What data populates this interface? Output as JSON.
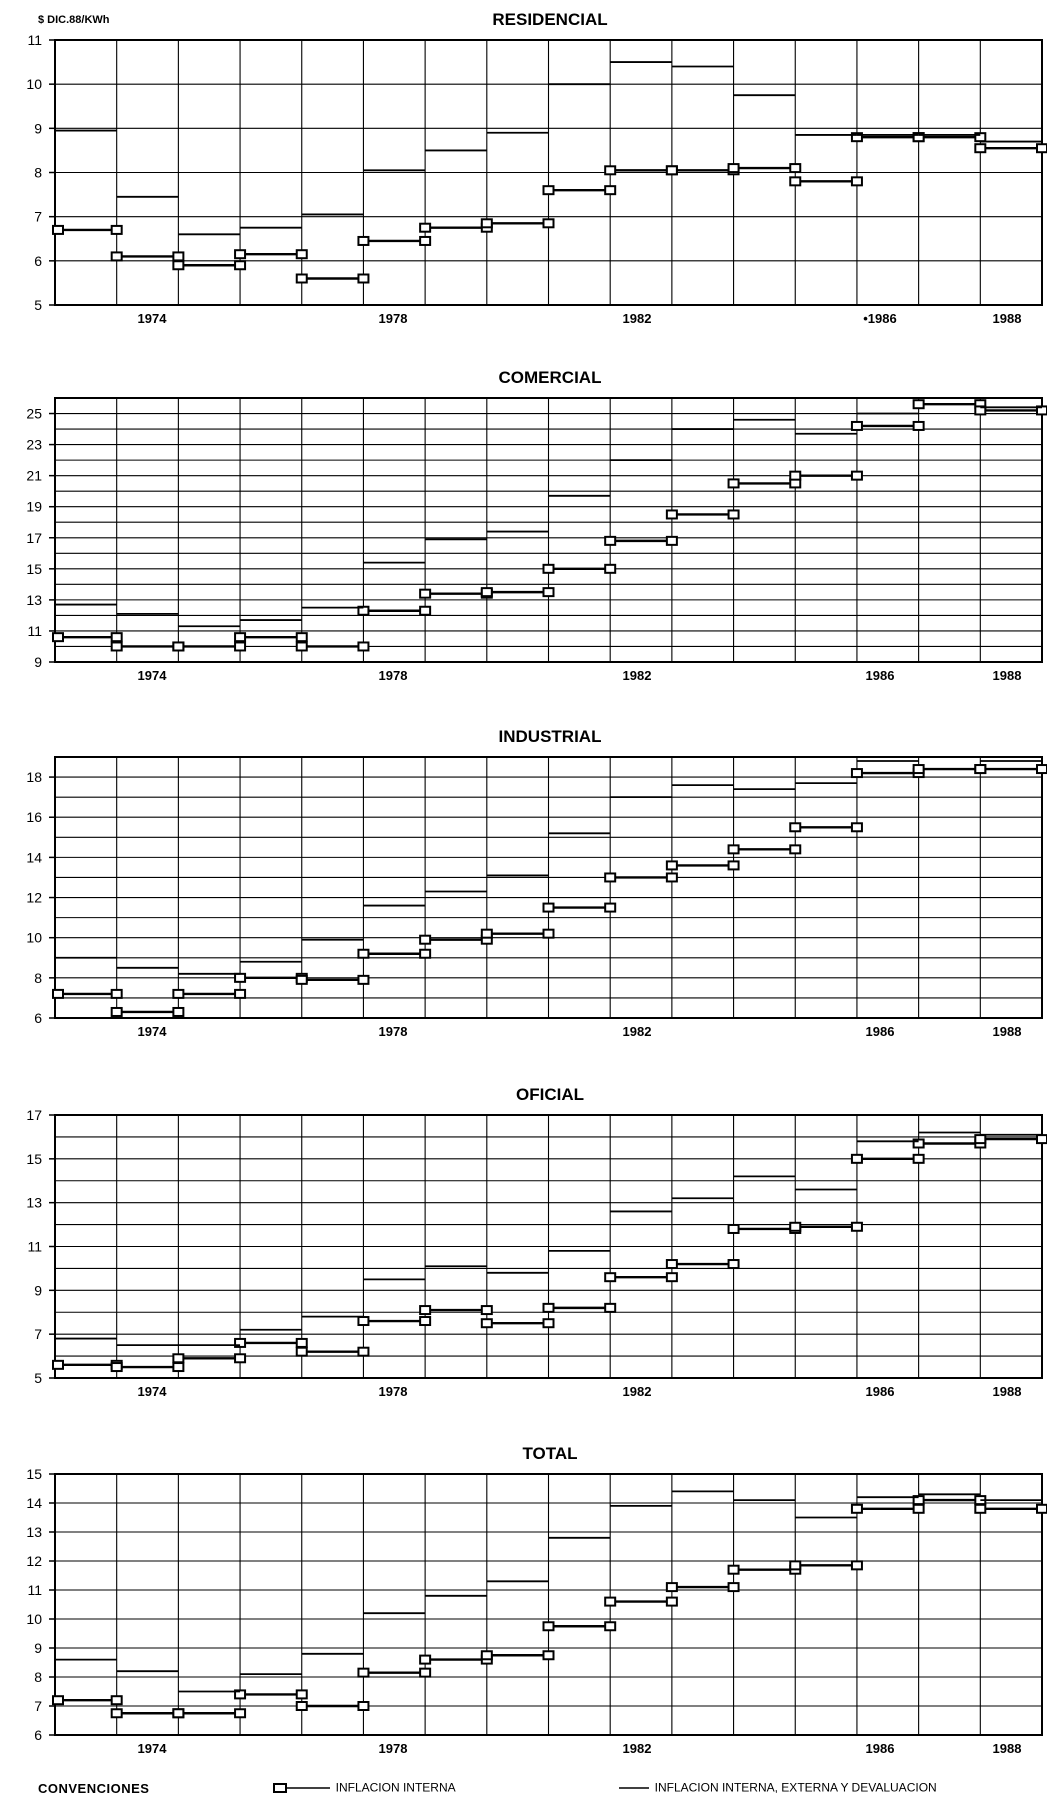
{
  "chart_data": [
    {
      "type": "line",
      "title": "RESIDENCIAL",
      "ylabel": "$ DIC.88/KWh",
      "ylim": [
        5,
        11
      ],
      "yticks": [
        5,
        6,
        7,
        8,
        9,
        10,
        11
      ],
      "xticks": [
        "1974",
        "1978",
        "1982",
        "•1986",
        "1988"
      ],
      "series": [
        {
          "name": "INFLACION INTERNA",
          "values": [
            6.7,
            6.1,
            5.9,
            6.15,
            5.6,
            6.45,
            6.75,
            6.85,
            7.6,
            8.05,
            8.05,
            8.1,
            7.8,
            8.8,
            8.8,
            8.55
          ]
        },
        {
          "name": "INFLACION INTERNA, EXTERNA Y DEVALUACION",
          "values": [
            8.95,
            7.45,
            6.6,
            6.75,
            7.05,
            8.05,
            8.5,
            8.9,
            10.0,
            10.5,
            10.4,
            9.75,
            8.85,
            8.85,
            8.85,
            8.7
          ]
        }
      ]
    },
    {
      "type": "line",
      "title": "COMERCIAL",
      "ylim": [
        9,
        26
      ],
      "yticks": [
        9,
        11,
        13,
        15,
        17,
        19,
        21,
        23,
        25
      ],
      "xticks": [
        "1974",
        "1978",
        "1982",
        "1986",
        "1988"
      ],
      "series": [
        {
          "name": "INFLACION INTERNA",
          "values": [
            10.6,
            10.0,
            10.0,
            10.6,
            10.0,
            12.3,
            13.4,
            13.5,
            15.0,
            16.8,
            18.5,
            20.5,
            21.0,
            24.2,
            25.6,
            25.2
          ]
        },
        {
          "name": "INFLACION INTERNA, EXTERNA Y DEVALUACION",
          "values": [
            12.7,
            12.1,
            11.3,
            11.7,
            12.5,
            15.4,
            16.9,
            17.4,
            19.7,
            22.0,
            24.0,
            24.6,
            23.7,
            25.0,
            26.0,
            25.4
          ]
        }
      ]
    },
    {
      "type": "line",
      "title": "INDUSTRIAL",
      "ylim": [
        6,
        19
      ],
      "yticks": [
        6,
        8,
        10,
        12,
        14,
        16,
        18
      ],
      "xticks": [
        "1974",
        "1978",
        "1982",
        "1986",
        "1988"
      ],
      "series": [
        {
          "name": "INFLACION INTERNA",
          "values": [
            7.2,
            6.3,
            7.2,
            8.0,
            7.9,
            9.2,
            9.9,
            10.2,
            11.5,
            13.0,
            13.6,
            14.4,
            15.5,
            18.2,
            18.4,
            18.4
          ]
        },
        {
          "name": "INFLACION INTERNA, EXTERNA Y DEVALUACION",
          "values": [
            9.0,
            8.5,
            8.2,
            8.8,
            9.9,
            11.6,
            12.3,
            13.1,
            15.2,
            17.0,
            17.6,
            17.4,
            17.7,
            18.8,
            19.0,
            18.8
          ]
        }
      ]
    },
    {
      "type": "line",
      "title": "OFICIAL",
      "ylim": [
        5,
        17
      ],
      "yticks": [
        5,
        7,
        9,
        11,
        13,
        15,
        17
      ],
      "xticks": [
        "1974",
        "1978",
        "1982",
        "1986",
        "1988"
      ],
      "series": [
        {
          "name": "INFLACION INTERNA",
          "values": [
            5.6,
            5.5,
            5.9,
            6.6,
            6.2,
            7.6,
            8.1,
            7.5,
            8.2,
            9.6,
            10.2,
            11.8,
            11.9,
            15.0,
            15.7,
            15.9
          ]
        },
        {
          "name": "INFLACION INTERNA, EXTERNA Y DEVALUACION",
          "values": [
            6.8,
            6.5,
            6.5,
            7.2,
            7.8,
            9.5,
            10.1,
            9.8,
            10.8,
            12.6,
            13.2,
            14.2,
            13.6,
            15.8,
            16.2,
            16.1
          ]
        }
      ]
    },
    {
      "type": "line",
      "title": "TOTAL",
      "ylim": [
        6,
        15
      ],
      "yticks": [
        6,
        7,
        8,
        9,
        10,
        11,
        12,
        13,
        14,
        15
      ],
      "xticks": [
        "1974",
        "1978",
        "1982",
        "1986",
        "1988"
      ],
      "series": [
        {
          "name": "INFLACION INTERNA",
          "values": [
            7.2,
            6.75,
            6.75,
            7.4,
            7.0,
            8.15,
            8.6,
            8.75,
            9.75,
            10.6,
            11.1,
            11.7,
            11.85,
            13.8,
            14.1,
            13.8
          ]
        },
        {
          "name": "INFLACION INTERNA, EXTERNA Y DEVALUACION",
          "values": [
            8.6,
            8.2,
            7.5,
            8.1,
            8.8,
            10.2,
            10.8,
            11.3,
            12.8,
            13.9,
            14.4,
            14.1,
            13.5,
            14.2,
            14.3,
            14.1
          ]
        }
      ]
    }
  ],
  "legend": {
    "heading": "CONVENCIONES",
    "items": [
      "INFLACION INTERNA",
      "INFLACION INTERNA, EXTERNA Y DEVALUACION"
    ]
  }
}
